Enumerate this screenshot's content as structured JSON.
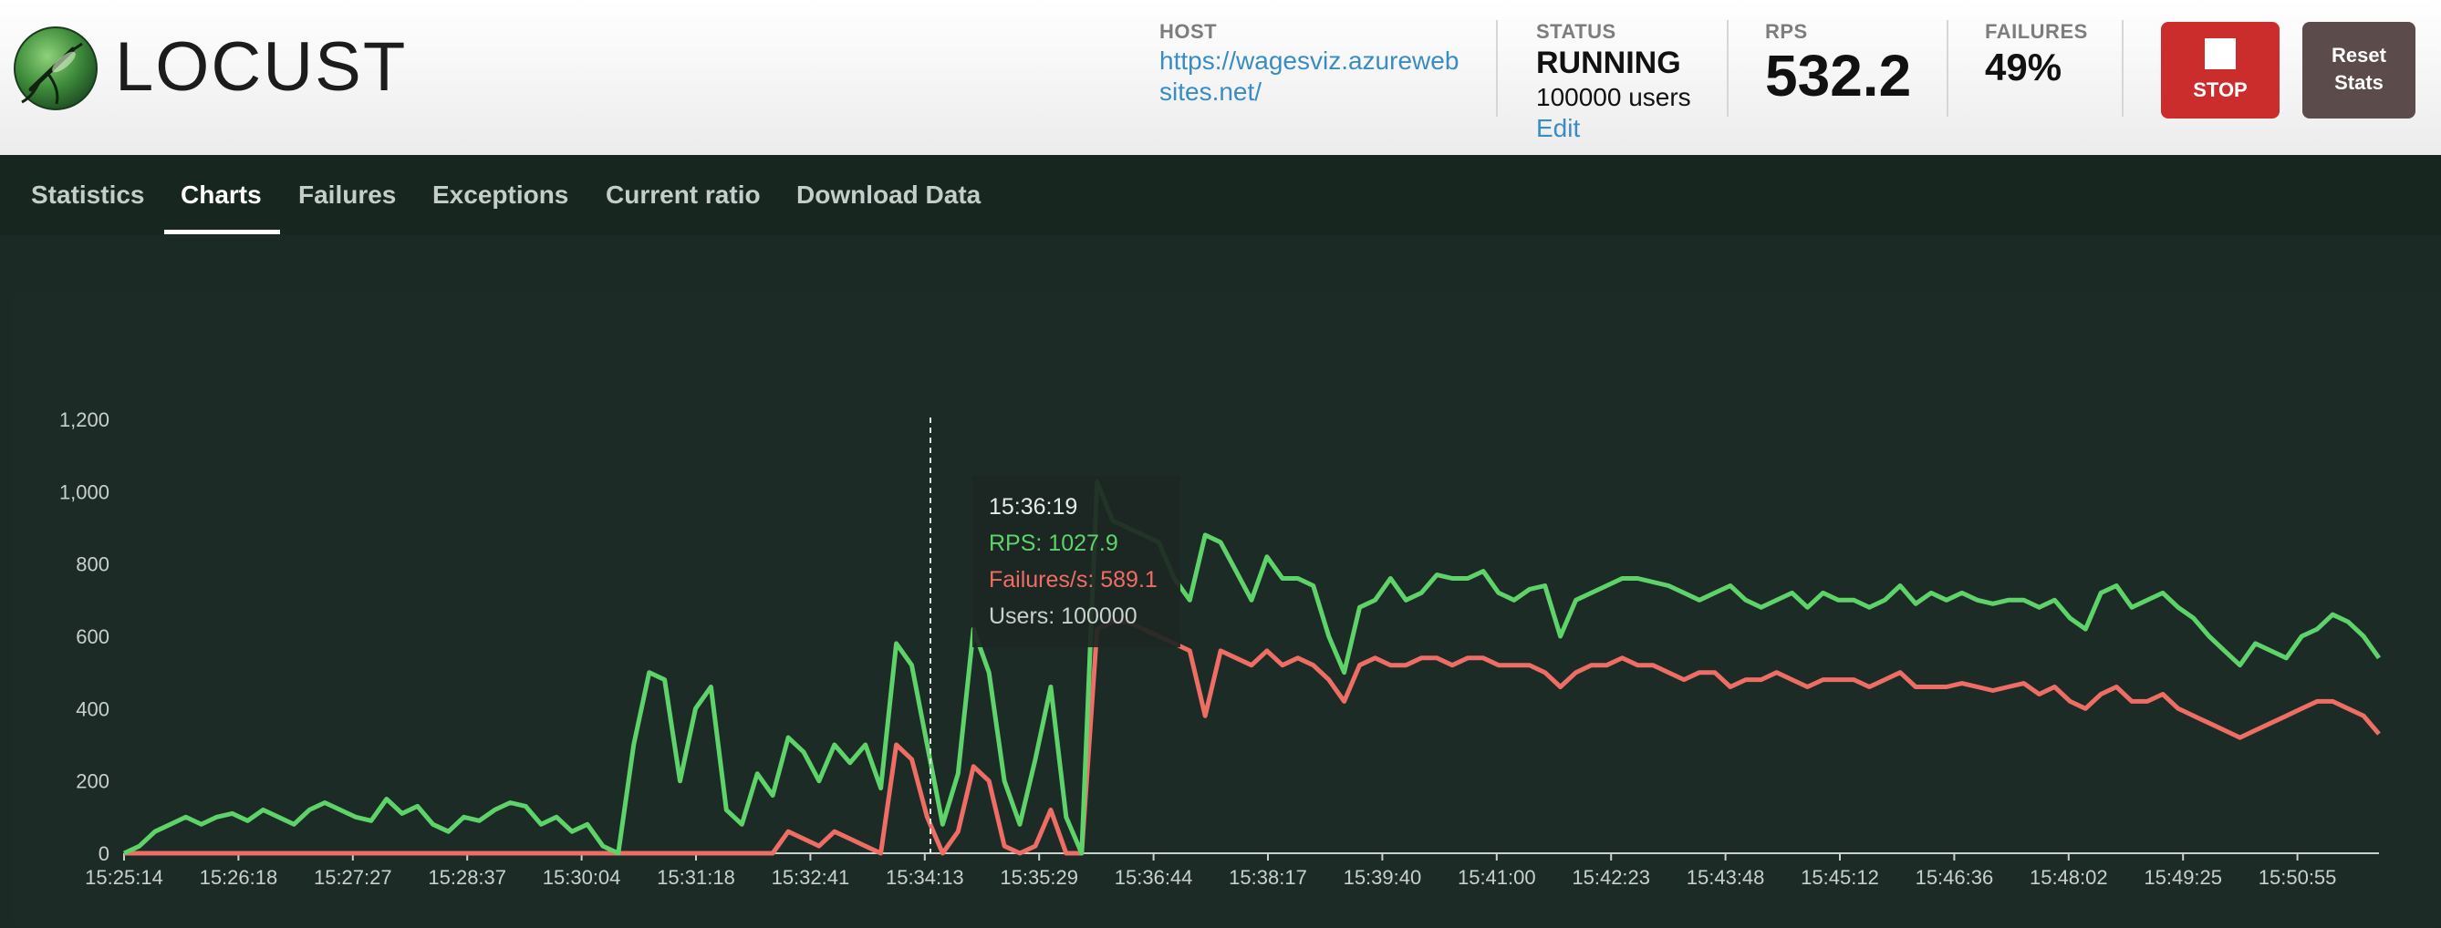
{
  "header": {
    "logo_text": "LOCUST",
    "host": {
      "label": "HOST",
      "value": "https://wagesviz.azurewebsites.net/"
    },
    "status": {
      "label": "STATUS",
      "value": "RUNNING",
      "users": "100000 users",
      "edit_label": "Edit"
    },
    "rps": {
      "label": "RPS",
      "value": "532.2"
    },
    "failures": {
      "label": "FAILURES",
      "value": "49%"
    },
    "stop_label": "STOP",
    "reset_label_line1": "Reset",
    "reset_label_line2": "Stats"
  },
  "tabs": [
    {
      "label": "Statistics"
    },
    {
      "label": "Charts",
      "active": true
    },
    {
      "label": "Failures"
    },
    {
      "label": "Exceptions"
    },
    {
      "label": "Current ratio"
    },
    {
      "label": "Download Data"
    }
  ],
  "tooltip": {
    "time": "15:36:19",
    "rps": "RPS: 1027.9",
    "failures": "Failures/s: 589.1",
    "users": "Users: 100000"
  },
  "colors": {
    "rps_line": "#5ed36a",
    "failures_line": "#ee6d65",
    "stop_button": "#cb2d2d",
    "reset_button": "#5b4b4a",
    "link": "#3a8cc4"
  },
  "icons": [
    "locust-logo-icon",
    "stop-square-icon"
  ],
  "chart_data": {
    "type": "line",
    "yticks": [
      0,
      200,
      400,
      600,
      800,
      1000,
      1200
    ],
    "ylim": [
      0,
      1200
    ],
    "x_tick_labels": [
      "15:25:14",
      "15:26:18",
      "15:27:27",
      "15:28:37",
      "15:30:04",
      "15:31:18",
      "15:32:41",
      "15:34:13",
      "15:35:29",
      "15:36:44",
      "15:38:17",
      "15:39:40",
      "15:41:00",
      "15:42:23",
      "15:43:48",
      "15:45:12",
      "15:46:36",
      "15:48:02",
      "15:49:25",
      "15:50:55"
    ],
    "series": [
      {
        "name": "RPS",
        "values": [
          0,
          20,
          60,
          80,
          100,
          80,
          100,
          110,
          90,
          120,
          100,
          80,
          120,
          140,
          120,
          100,
          90,
          150,
          110,
          130,
          80,
          60,
          100,
          90,
          120,
          140,
          130,
          80,
          100,
          60,
          80,
          20,
          0,
          300,
          500,
          480,
          200,
          400,
          460,
          120,
          80,
          220,
          160,
          320,
          280,
          200,
          300,
          250,
          300,
          180,
          580,
          520,
          300,
          80,
          220,
          620,
          500,
          200,
          80,
          260,
          460,
          100,
          0,
          1027,
          920,
          900,
          880,
          860,
          760,
          700,
          880,
          860,
          780,
          700,
          820,
          760,
          760,
          740,
          600,
          500,
          680,
          700,
          760,
          700,
          720,
          770,
          760,
          760,
          780,
          720,
          700,
          730,
          740,
          600,
          700,
          720,
          740,
          760,
          760,
          750,
          740,
          720,
          700,
          720,
          740,
          700,
          680,
          700,
          720,
          680,
          720,
          700,
          700,
          680,
          700,
          740,
          690,
          720,
          700,
          720,
          700,
          690,
          700,
          700,
          680,
          700,
          650,
          620,
          720,
          740,
          680,
          700,
          720,
          680,
          650,
          600,
          560,
          520,
          580,
          560,
          540,
          600,
          620,
          660,
          640,
          600,
          540
        ]
      },
      {
        "name": "Failures/s",
        "values": [
          0,
          0,
          0,
          0,
          0,
          0,
          0,
          0,
          0,
          0,
          0,
          0,
          0,
          0,
          0,
          0,
          0,
          0,
          0,
          0,
          0,
          0,
          0,
          0,
          0,
          0,
          0,
          0,
          0,
          0,
          0,
          0,
          0,
          0,
          0,
          0,
          0,
          0,
          0,
          0,
          0,
          0,
          0,
          60,
          40,
          20,
          60,
          40,
          20,
          0,
          300,
          260,
          100,
          0,
          60,
          240,
          200,
          20,
          0,
          20,
          120,
          0,
          0,
          620,
          640,
          640,
          620,
          600,
          580,
          560,
          380,
          560,
          540,
          520,
          560,
          520,
          540,
          520,
          480,
          420,
          520,
          540,
          520,
          520,
          540,
          540,
          520,
          540,
          540,
          520,
          520,
          520,
          500,
          460,
          500,
          520,
          520,
          540,
          520,
          520,
          500,
          480,
          500,
          500,
          460,
          480,
          480,
          500,
          480,
          460,
          480,
          480,
          480,
          460,
          480,
          500,
          460,
          460,
          460,
          470,
          460,
          450,
          460,
          470,
          440,
          460,
          420,
          400,
          440,
          460,
          420,
          420,
          440,
          400,
          380,
          360,
          340,
          320,
          340,
          360,
          380,
          400,
          420,
          420,
          400,
          380,
          330
        ]
      },
      {
        "name": "Users",
        "values": []
      }
    ]
  }
}
